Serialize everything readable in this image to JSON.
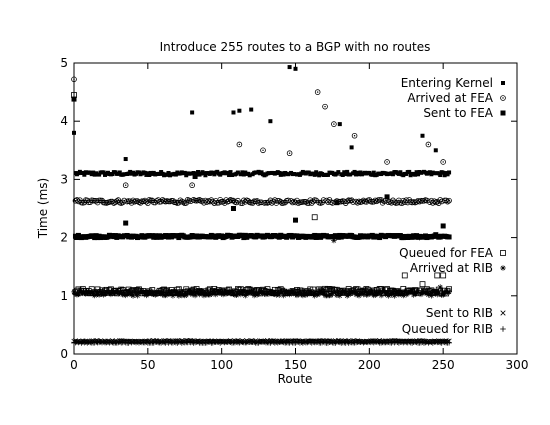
{
  "chart_data": {
    "type": "scatter",
    "title": "Introduce 255 routes to a BGP with no routes",
    "xlabel": "Route",
    "ylabel": "Time (ms)",
    "xlim": [
      0,
      300
    ],
    "ylim": [
      0,
      5
    ],
    "x_ticks": [
      0,
      50,
      100,
      150,
      200,
      250,
      300
    ],
    "y_ticks": [
      0,
      1,
      2,
      3,
      4,
      5
    ],
    "grid": false,
    "legend_placement": [
      "top-right",
      "middle-right",
      "bottom-right"
    ],
    "series": [
      {
        "name": "Entering Kernel",
        "marker": "filled-square-small",
        "typical_y": 3.1,
        "jitter": 0.03,
        "outliers": [
          [
            0,
            3.8
          ],
          [
            35,
            3.35
          ],
          [
            80,
            4.15
          ],
          [
            108,
            4.15
          ],
          [
            112,
            4.18
          ],
          [
            120,
            4.2
          ],
          [
            133,
            4.0
          ],
          [
            146,
            4.93
          ],
          [
            150,
            4.9
          ],
          [
            180,
            3.95
          ],
          [
            188,
            3.55
          ],
          [
            236,
            3.75
          ],
          [
            245,
            3.5
          ]
        ]
      },
      {
        "name": "Arrived at FEA",
        "marker": "circle-dot",
        "typical_y": 2.62,
        "jitter": 0.03,
        "outliers": [
          [
            0,
            4.72
          ],
          [
            35,
            2.9
          ],
          [
            80,
            2.9
          ],
          [
            112,
            3.6
          ],
          [
            128,
            3.5
          ],
          [
            146,
            3.45
          ],
          [
            165,
            4.5
          ],
          [
            170,
            4.25
          ],
          [
            176,
            3.95
          ],
          [
            190,
            3.75
          ],
          [
            212,
            3.3
          ],
          [
            240,
            3.6
          ],
          [
            250,
            3.3
          ]
        ]
      },
      {
        "name": "Sent to FEA",
        "marker": "filled-square",
        "typical_y": 2.02,
        "jitter": 0.02,
        "outliers": [
          [
            0,
            4.38
          ],
          [
            35,
            2.25
          ],
          [
            82,
            3.05
          ],
          [
            108,
            2.5
          ],
          [
            150,
            2.3
          ],
          [
            178,
            2.6
          ],
          [
            212,
            2.7
          ],
          [
            245,
            2.05
          ],
          [
            250,
            2.2
          ]
        ]
      },
      {
        "name": "Queued for FEA",
        "marker": "open-square",
        "typical_y": 1.08,
        "jitter": 0.04,
        "outliers": [
          [
            0,
            4.45
          ],
          [
            163,
            2.35
          ],
          [
            224,
            1.35
          ],
          [
            236,
            1.2
          ],
          [
            246,
            1.35
          ],
          [
            250,
            1.35
          ]
        ]
      },
      {
        "name": "Arrived at RIB",
        "marker": "star",
        "typical_y": 1.04,
        "jitter": 0.04,
        "outliers": [
          [
            176,
            1.95
          ],
          [
            234,
            2.0
          ],
          [
            248,
            1.15
          ]
        ]
      },
      {
        "name": "Sent to RIB",
        "marker": "x",
        "typical_y": 0.22,
        "jitter": 0.01,
        "outliers": []
      },
      {
        "name": "Queued for RIB",
        "marker": "plus",
        "typical_y": 0.2,
        "jitter": 0.01,
        "outliers": []
      }
    ],
    "route_count": 255
  }
}
